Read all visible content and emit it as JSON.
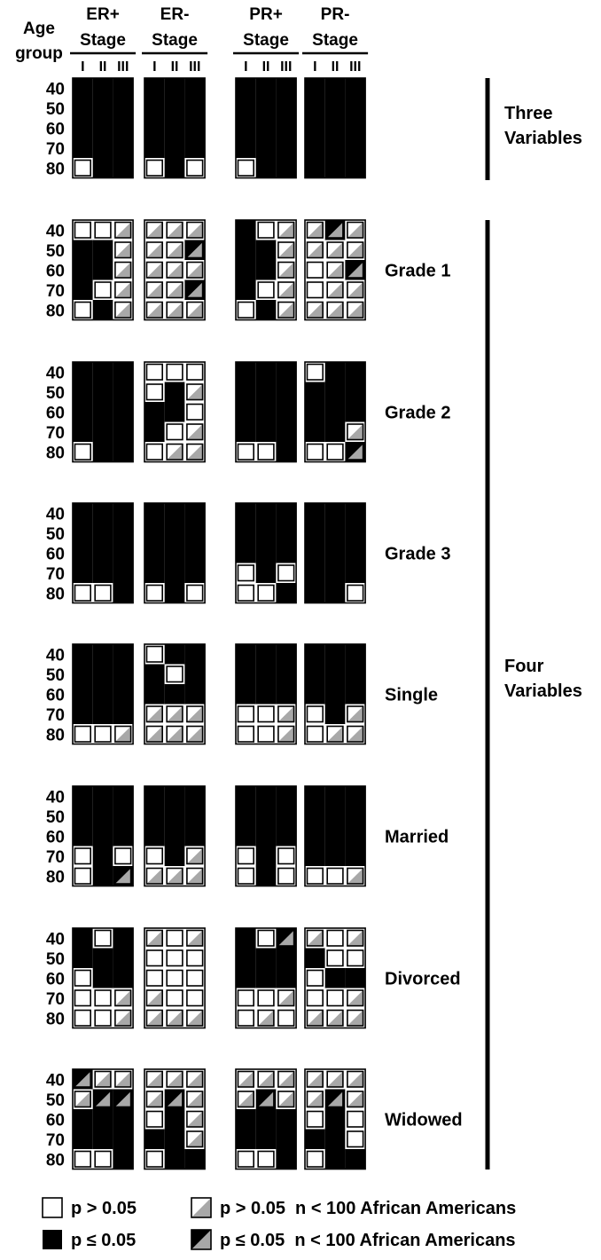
{
  "chart_data": {
    "type": "heatmap",
    "row_header_line1": "Age",
    "row_header_line2": "group",
    "age_groups": [
      "40",
      "50",
      "60",
      "70",
      "80"
    ],
    "stages": [
      "I",
      "II",
      "III"
    ],
    "columns": [
      {
        "name": "ER+",
        "sub": "Stage"
      },
      {
        "name": "ER-",
        "sub": "Stage"
      },
      {
        "name": "PR+",
        "sub": "Stage"
      },
      {
        "name": "PR-",
        "sub": "Stage"
      }
    ],
    "cell_codes": {
      "N": "p > 0.05",
      "S": "p ≤ 0.05",
      "n": "p > 0.05 n < 100 African Americans",
      "s": "p ≤ 0.05 n < 100 African Americans"
    },
    "colors": {
      "significant": "#000000",
      "not_significant": "#ffffff",
      "small_sample": "#a8a8a8"
    },
    "panels": [
      {
        "label": "Three Variables",
        "label_lines": [
          "Three",
          "Variables"
        ],
        "group": "Three Variables",
        "grids": [
          [
            "SSS",
            "SSS",
            "SSS",
            "SSS",
            "NSS"
          ],
          [
            "SSS",
            "SSS",
            "SSS",
            "SSS",
            "NSN"
          ],
          [
            "SSS",
            "SSS",
            "SSS",
            "SSS",
            "NSS"
          ],
          [
            "SSS",
            "SSS",
            "SSS",
            "SSS",
            "SSS"
          ]
        ]
      },
      {
        "label": "Grade 1",
        "label_lines": [
          "Grade 1"
        ],
        "group": "Four Variables",
        "grids": [
          [
            "NNn",
            "SSn",
            "SSn",
            "SNn",
            "NSn"
          ],
          [
            "nnn",
            "nns",
            "nnn",
            "nns",
            "nnn"
          ],
          [
            "SNn",
            "SSn",
            "SSn",
            "SNn",
            "NSn"
          ],
          [
            "nsn",
            "nnn",
            "Nns",
            "Nnn",
            "nnn"
          ]
        ]
      },
      {
        "label": "Grade 2",
        "label_lines": [
          "Grade 2"
        ],
        "group": "Four Variables",
        "grids": [
          [
            "SSS",
            "SSS",
            "SSS",
            "SSS",
            "NSS"
          ],
          [
            "NNN",
            "NSn",
            "SSN",
            "SNn",
            "Nnn"
          ],
          [
            "SSS",
            "SSS",
            "SSS",
            "SSS",
            "NNS"
          ],
          [
            "NSS",
            "SSS",
            "SSS",
            "SSn",
            "NNs"
          ]
        ]
      },
      {
        "label": "Grade 3",
        "label_lines": [
          "Grade 3"
        ],
        "group": "Four Variables",
        "grids": [
          [
            "SSS",
            "SSS",
            "SSS",
            "SSS",
            "NNS"
          ],
          [
            "SSS",
            "SSS",
            "SSS",
            "SSS",
            "NSN"
          ],
          [
            "SSS",
            "SSS",
            "SSS",
            "NSN",
            "NNS"
          ],
          [
            "SSS",
            "SSS",
            "SSS",
            "SSS",
            "SSN"
          ]
        ]
      },
      {
        "label": "Single",
        "label_lines": [
          "Single"
        ],
        "group": "Four Variables",
        "grids": [
          [
            "SSS",
            "SSS",
            "SSS",
            "SSS",
            "NNn"
          ],
          [
            "NSS",
            "SNS",
            "SSS",
            "nnn",
            "nnn"
          ],
          [
            "SSS",
            "SSS",
            "SSS",
            "NNn",
            "NNn"
          ],
          [
            "SSS",
            "SSS",
            "SSS",
            "NSn",
            "Nnn"
          ]
        ]
      },
      {
        "label": "Married",
        "label_lines": [
          "Married"
        ],
        "group": "Four Variables",
        "grids": [
          [
            "SSS",
            "SSS",
            "SSS",
            "NSN",
            "NSs"
          ],
          [
            "SSS",
            "SSS",
            "SSS",
            "NSn",
            "nnn"
          ],
          [
            "SSS",
            "SSS",
            "SSS",
            "NSN",
            "NSN"
          ],
          [
            "SSS",
            "SSS",
            "SSS",
            "SSS",
            "NNn"
          ]
        ]
      },
      {
        "label": "Divorced",
        "label_lines": [
          "Divorced"
        ],
        "group": "Four Variables",
        "grids": [
          [
            "SNS",
            "SSS",
            "NSS",
            "NNn",
            "NNn"
          ],
          [
            "nNn",
            "NNN",
            "NNN",
            "nNN",
            "nnn"
          ],
          [
            "SNs",
            "SSS",
            "SSS",
            "NNn",
            "NnN"
          ],
          [
            "nNn",
            "SNN",
            "NSS",
            "NNn",
            "nnn"
          ]
        ]
      },
      {
        "label": "Widowed",
        "label_lines": [
          "Widowed"
        ],
        "group": "Four Variables",
        "grids": [
          [
            "snn",
            "nss",
            "SSS",
            "SSS",
            "NNS"
          ],
          [
            "nnn",
            "nsn",
            "NSn",
            "SSn",
            "NSS"
          ],
          [
            "nnn",
            "nsn",
            "SSS",
            "SSS",
            "NNS"
          ],
          [
            "nnn",
            "nsn",
            "NSN",
            "SSN",
            "NSS"
          ]
        ]
      }
    ],
    "brackets": [
      {
        "label": "Three Variables",
        "label_lines": [
          "Three",
          "Variables"
        ]
      },
      {
        "label": "Four Variables",
        "label_lines": [
          "Four",
          "Variables"
        ]
      }
    ],
    "legend": [
      {
        "code": "N",
        "text": "p > 0.05"
      },
      {
        "code": "n",
        "text": "p > 0.05  n < 100 African Americans"
      },
      {
        "code": "S",
        "text": "p ≤ 0.05"
      },
      {
        "code": "s",
        "text": "p ≤ 0.05  n < 100 African Americans"
      }
    ]
  }
}
